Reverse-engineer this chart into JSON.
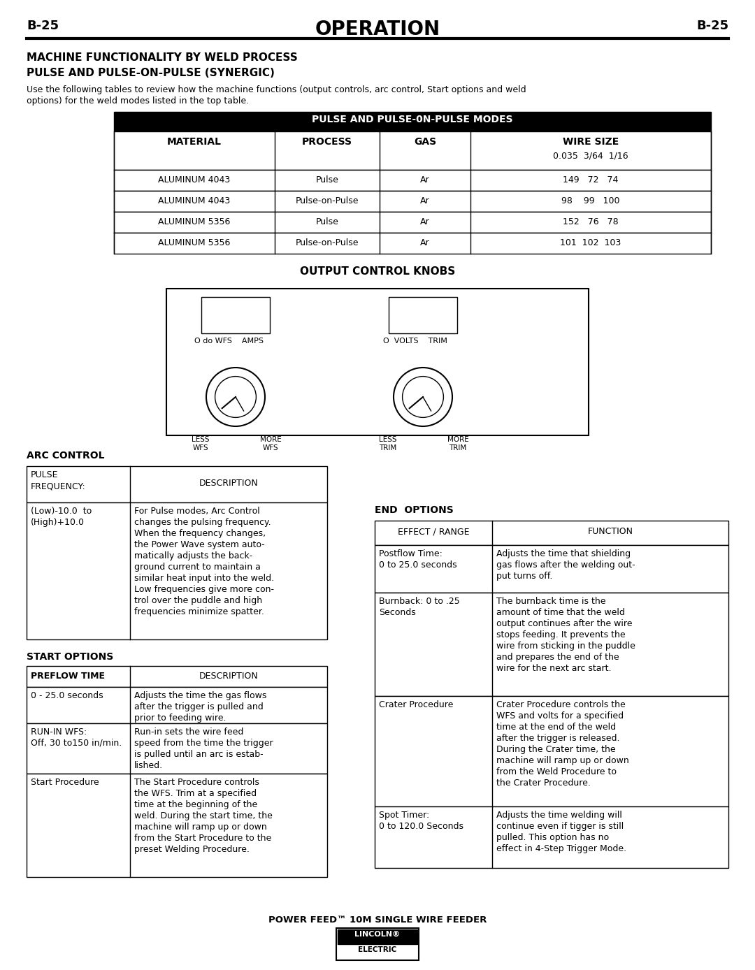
{
  "page_label": "B-25",
  "page_title": "OPERATION",
  "section_title_line1": "MACHINE FUNCTIONALITY BY WELD PROCESS",
  "section_title_line2": "PULSE AND PULSE-ON-PULSE (SYNERGIC)",
  "intro_text1": "Use the following tables to review how the machine functions (output controls, arc control, Start options and weld",
  "intro_text2": "options) for the weld modes listed in the top table.",
  "table1_header": "PULSE AND PULSE-0N-PULSE MODES",
  "table1_col_headers": [
    "MATERIAL",
    "PROCESS",
    "GAS",
    "WIRE SIZE"
  ],
  "table1_wire_sub": "0.035  3/64  1/16",
  "table1_rows": [
    [
      "ALUMINUM 4043",
      "Pulse",
      "Ar",
      "149   72   74"
    ],
    [
      "ALUMINUM 4043",
      "Pulse-on-Pulse",
      "Ar",
      "98    99   100"
    ],
    [
      "ALUMINUM 5356",
      "Pulse",
      "Ar",
      "152   76   78"
    ],
    [
      "ALUMINUM 5356",
      "Pulse-on-Pulse",
      "Ar",
      "101  102  103"
    ]
  ],
  "output_knobs_title": "OUTPUT CONTROL KNOBS",
  "arc_control_title": "ARC CONTROL",
  "arc_header_col1": "PULSE\nFREQUENCY:",
  "arc_header_col2": "DESCRIPTION",
  "arc_row_col1": "(Low)-10.0  to\n(High)+10.0",
  "arc_row_col2": "For Pulse modes, Arc Control\nchanges the pulsing frequency.\nWhen the frequency changes,\nthe Power Wave system auto-\nmatically adjusts the back-\nground current to maintain a\nsimilar heat input into the weld.\nLow frequencies give more con-\ntrol over the puddle and high\nfrequencies minimize spatter.",
  "start_options_title": "START OPTIONS",
  "start_header_col1": "PREFLOW TIME",
  "start_header_col2": "DESCRIPTION",
  "start_rows": [
    [
      "0 - 25.0 seconds",
      "Adjusts the time the gas flows\nafter the trigger is pulled and\nprior to feeding wire."
    ],
    [
      "RUN-IN WFS:\nOff, 30 to150 in/min.",
      "Run-in sets the wire feed\nspeed from the time the trigger\nis pulled until an arc is estab-\nlished."
    ],
    [
      "Start Procedure",
      "The Start Procedure controls\nthe WFS. Trim at a specified\ntime at the beginning of the\nweld. During the start time, the\nmachine will ramp up or down\nfrom the Start Procedure to the\npreset Welding Procedure."
    ]
  ],
  "end_options_title": "END  OPTIONS",
  "end_header_col1": "EFFECT / RANGE",
  "end_header_col2": "FUNCTION",
  "end_rows": [
    [
      "Postflow Time:\n0 to 25.0 seconds",
      "Adjusts the time that shielding\ngas flows after the welding out-\nput turns off."
    ],
    [
      "Burnback: 0 to .25\nSeconds",
      "The burnback time is the\namount of time that the weld\noutput continues after the wire\nstops feeding. It prevents the\nwire from sticking in the puddle\nand prepares the end of the\nwire for the next arc start."
    ],
    [
      "Crater Procedure",
      "Crater Procedure controls the\nWFS and volts for a specified\ntime at the end of the weld\nafter the trigger is released.\nDuring the Crater time, the\nmachine will ramp up or down\nfrom the Weld Procedure to\nthe Crater Procedure."
    ],
    [
      "Spot Timer:\n0 to 120.0 Seconds",
      "Adjusts the time welding will\ncontinue even if tigger is still\npulled. This option has no\neffect in 4-Step Trigger Mode."
    ]
  ],
  "footer_text": "POWER FEED™ 10M SINGLE WIRE FEEDER",
  "bg_color": "#ffffff"
}
